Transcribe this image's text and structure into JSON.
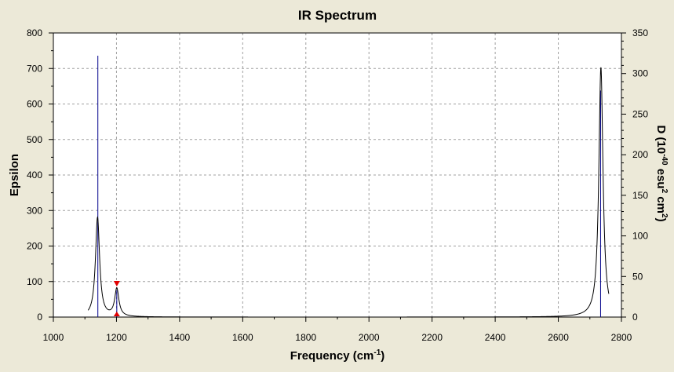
{
  "chart_data": {
    "type": "line",
    "title": "IR Spectrum",
    "xlabel": "Frequency (cm",
    "xlabel_sup": "-1",
    "xlabel_end": ")",
    "ylabel": "Epsilon",
    "y2label_parts": [
      "D (10",
      "-40",
      " esu",
      "2",
      " cm",
      "2",
      ")"
    ],
    "xlim": [
      1000,
      2800
    ],
    "ylim": [
      0,
      800
    ],
    "y2lim": [
      0,
      350
    ],
    "x_ticks": [
      1000,
      1200,
      1400,
      1600,
      1800,
      2000,
      2200,
      2400,
      2600,
      2800
    ],
    "y_ticks": [
      0,
      100,
      200,
      300,
      400,
      500,
      600,
      700,
      800
    ],
    "y2_ticks": [
      0,
      50,
      100,
      150,
      200,
      250,
      300,
      350
    ],
    "grid": true,
    "peaks": [
      {
        "x": 1140,
        "epsilon": 280,
        "width": 8
      },
      {
        "x": 1201,
        "epsilon": 78,
        "width": 8
      },
      {
        "x": 2735,
        "epsilon": 703,
        "width": 8
      }
    ],
    "stick_series": [
      {
        "x": 1141,
        "D": 322
      },
      {
        "x": 1201,
        "D": 33
      },
      {
        "x": 2734,
        "D": 279
      }
    ],
    "marker": {
      "x": 1201,
      "epsilon": 95
    },
    "colors": {
      "background": "#ece9d8",
      "plot_background": "#ffffff",
      "spectrum": "#000000",
      "sticks": "#00008b",
      "marker": "#e00000",
      "grid": "#a0a0a0"
    }
  }
}
